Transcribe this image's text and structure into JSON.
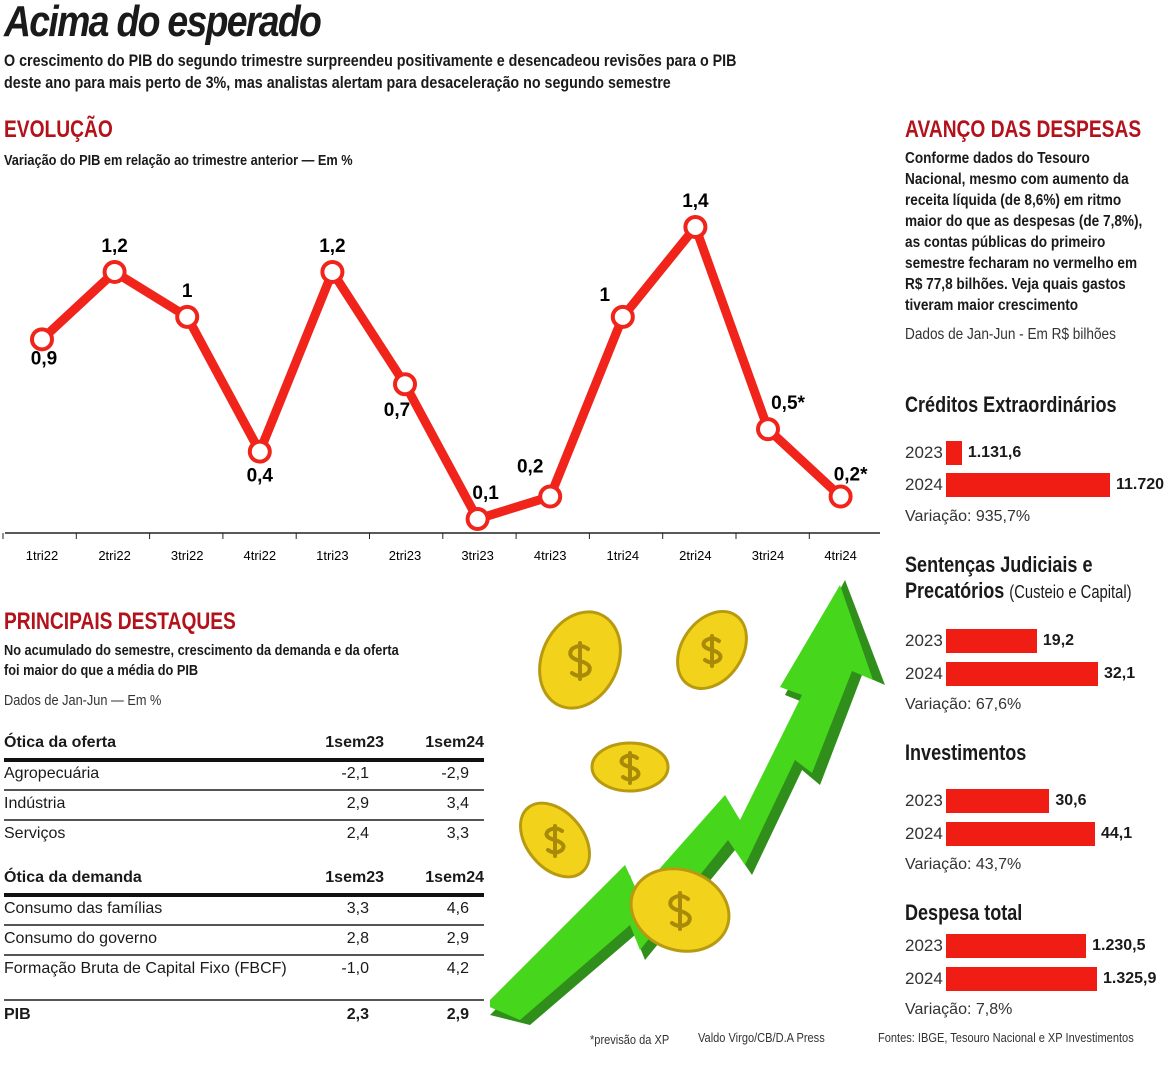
{
  "header": {
    "title": "Acima do esperado",
    "subtitle_line1": "O crescimento do PIB do segundo trimestre surpreendeu positivamente e desencadeou revisões para o PIB",
    "subtitle_line2": "deste ano para mais perto de 3%, mas analistas alertam para desaceleração no segundo semestre"
  },
  "colors": {
    "accent": "#b3121b",
    "line": "#f0241a",
    "bar": "#f01d14",
    "arrow": "#3fcf1a",
    "coin": "#f2d21a"
  },
  "evolucao": {
    "section_title": "EVOLUÇÃO",
    "description": "Variação do PIB em relação ao trimestre anterior — Em %"
  },
  "chart_data": {
    "type": "line",
    "title": "EVOLUÇÃO",
    "subtitle": "Variação do PIB em relação ao trimestre anterior — Em %",
    "categories": [
      "1tri22",
      "2tri22",
      "3tri22",
      "4tri22",
      "1tri23",
      "2tri23",
      "3tri23",
      "4tri23",
      "1tri24",
      "2tri24",
      "3tri24",
      "4tri24"
    ],
    "values": [
      0.9,
      1.2,
      1.0,
      0.4,
      1.2,
      0.7,
      0.1,
      0.2,
      1.0,
      1.4,
      0.5,
      0.2
    ],
    "data_labels": [
      "0,9",
      "1,2",
      "1",
      "0,4",
      "1,2",
      "0,7",
      "0,1",
      "0,2",
      "1",
      "1,4",
      "0,5*",
      "0,2*"
    ],
    "grid": false
  },
  "destaques": {
    "section_title": "PRINCIPAIS DESTAQUES",
    "description_line1": "No acumulado do semestre, crescimento da demanda e da oferta",
    "description_line2": "foi maior do que a média do PIB",
    "note": "Dados de Jan-Jun — Em %",
    "oferta": {
      "header": [
        "Ótica da oferta",
        "1sem23",
        "1sem24"
      ],
      "rows": [
        [
          "Agropecuária",
          "-2,1",
          "-2,9"
        ],
        [
          "Indústria",
          "2,9",
          "3,4"
        ],
        [
          "Serviços",
          "2,4",
          "3,3"
        ]
      ]
    },
    "demanda": {
      "header": [
        "Ótica da demanda",
        "1sem23",
        "1sem24"
      ],
      "rows": [
        [
          "Consumo das famílias",
          "3,3",
          "4,6"
        ],
        [
          "Consumo do governo",
          "2,8",
          "2,9"
        ],
        [
          "Formação Bruta de Capital Fixo (FBCF)",
          "-1,0",
          "4,2"
        ]
      ]
    },
    "pib": [
      "PIB",
      "2,3",
      "2,9"
    ]
  },
  "despesas": {
    "section_title": "AVANÇO DAS DESPESAS",
    "paragraph": [
      "Conforme dados do Tesouro",
      "Nacional, mesmo com aumento da",
      "receita líquida (de 8,6%) em ritmo",
      "maior do que as despesas (de 7,8%),",
      "as contas públicas do primeiro",
      "semestre fecharam no vermelho em",
      "R$ 77,8 bilhões. Veja quais gastos",
      "tiveram maior crescimento"
    ],
    "note": "Dados de Jan-Jun - Em R$ bilhões",
    "groups": [
      {
        "title": "Créditos Extraordinários",
        "title2": "",
        "subtitle": "",
        "bars": [
          {
            "year": "2023",
            "value": 1131.6,
            "label": "1.131,6"
          },
          {
            "year": "2024",
            "value": 11720,
            "label": "11.720"
          }
        ],
        "variation": "Variação: 935,7%"
      },
      {
        "title": "Sentenças Judiciais e",
        "title2": "Precatórios",
        "subtitle": "(Custeio e Capital)",
        "bars": [
          {
            "year": "2023",
            "value": 19.2,
            "label": "19,2"
          },
          {
            "year": "2024",
            "value": 32.1,
            "label": "32,1"
          }
        ],
        "variation": "Variação: 67,6%"
      },
      {
        "title": "Investimentos",
        "title2": "",
        "subtitle": "",
        "bars": [
          {
            "year": "2023",
            "value": 30.6,
            "label": "30,6"
          },
          {
            "year": "2024",
            "value": 44.1,
            "label": "44,1"
          }
        ],
        "variation": "Variação: 43,7%"
      },
      {
        "title": "Despesa total",
        "title2": "",
        "subtitle": "",
        "bars": [
          {
            "year": "2023",
            "value": 1230.5,
            "label": "1.230,5"
          },
          {
            "year": "2024",
            "value": 1325.9,
            "label": "1.325,9"
          }
        ],
        "variation": "Variação: 7,8%"
      }
    ]
  },
  "footer": {
    "forecast_note": "*previsão da XP",
    "credit": "Valdo Virgo/CB/D.A Press",
    "sources": "Fontes: IBGE, Tesouro Nacional e XP Investimentos"
  }
}
